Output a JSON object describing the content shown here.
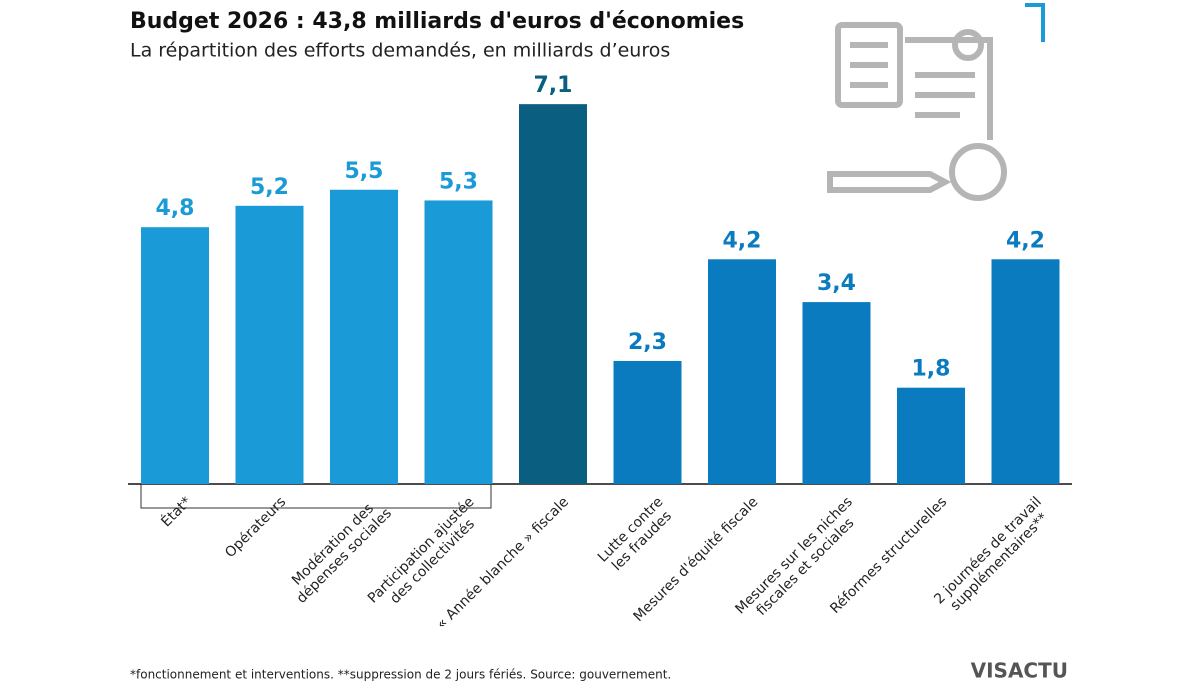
{
  "chart_data": {
    "type": "bar",
    "title": "Budget 2026 : 43,8 milliards d'euros d'économies",
    "subtitle": "La répartition des efforts demandés, en milliards d’euros",
    "categories": [
      "État*",
      "Opérateurs",
      "Modération des\ndépenses sociales",
      "Participation ajustée\ndes collectivités",
      "« Année blanche » fiscale",
      "Lutte contre\nles fraudes",
      "Mesures d'équité fiscale",
      "Mesures sur les niches\nfiscales et sociales",
      "Réformes structurelles",
      "2 journées de travail\nsupplémentaires**"
    ],
    "values": [
      4.8,
      5.2,
      5.5,
      5.3,
      7.1,
      2.3,
      4.2,
      3.4,
      1.8,
      4.2
    ],
    "value_labels": [
      "4,8",
      "5,2",
      "5,5",
      "5,3",
      "7,1",
      "2,3",
      "4,2",
      "3,4",
      "1,8",
      "4,2"
    ],
    "colors": [
      "#1a9ad6",
      "#1a9ad6",
      "#1a9ad6",
      "#1a9ad6",
      "#0a5f80",
      "#0b7bbf",
      "#0b7bbf",
      "#0b7bbf",
      "#0b7bbf",
      "#0b7bbf"
    ],
    "footnote": "*fonctionnement et interventions. **suppression de 2 jours fériés. Source: gouvernement.",
    "brand": "VISACTU"
  }
}
